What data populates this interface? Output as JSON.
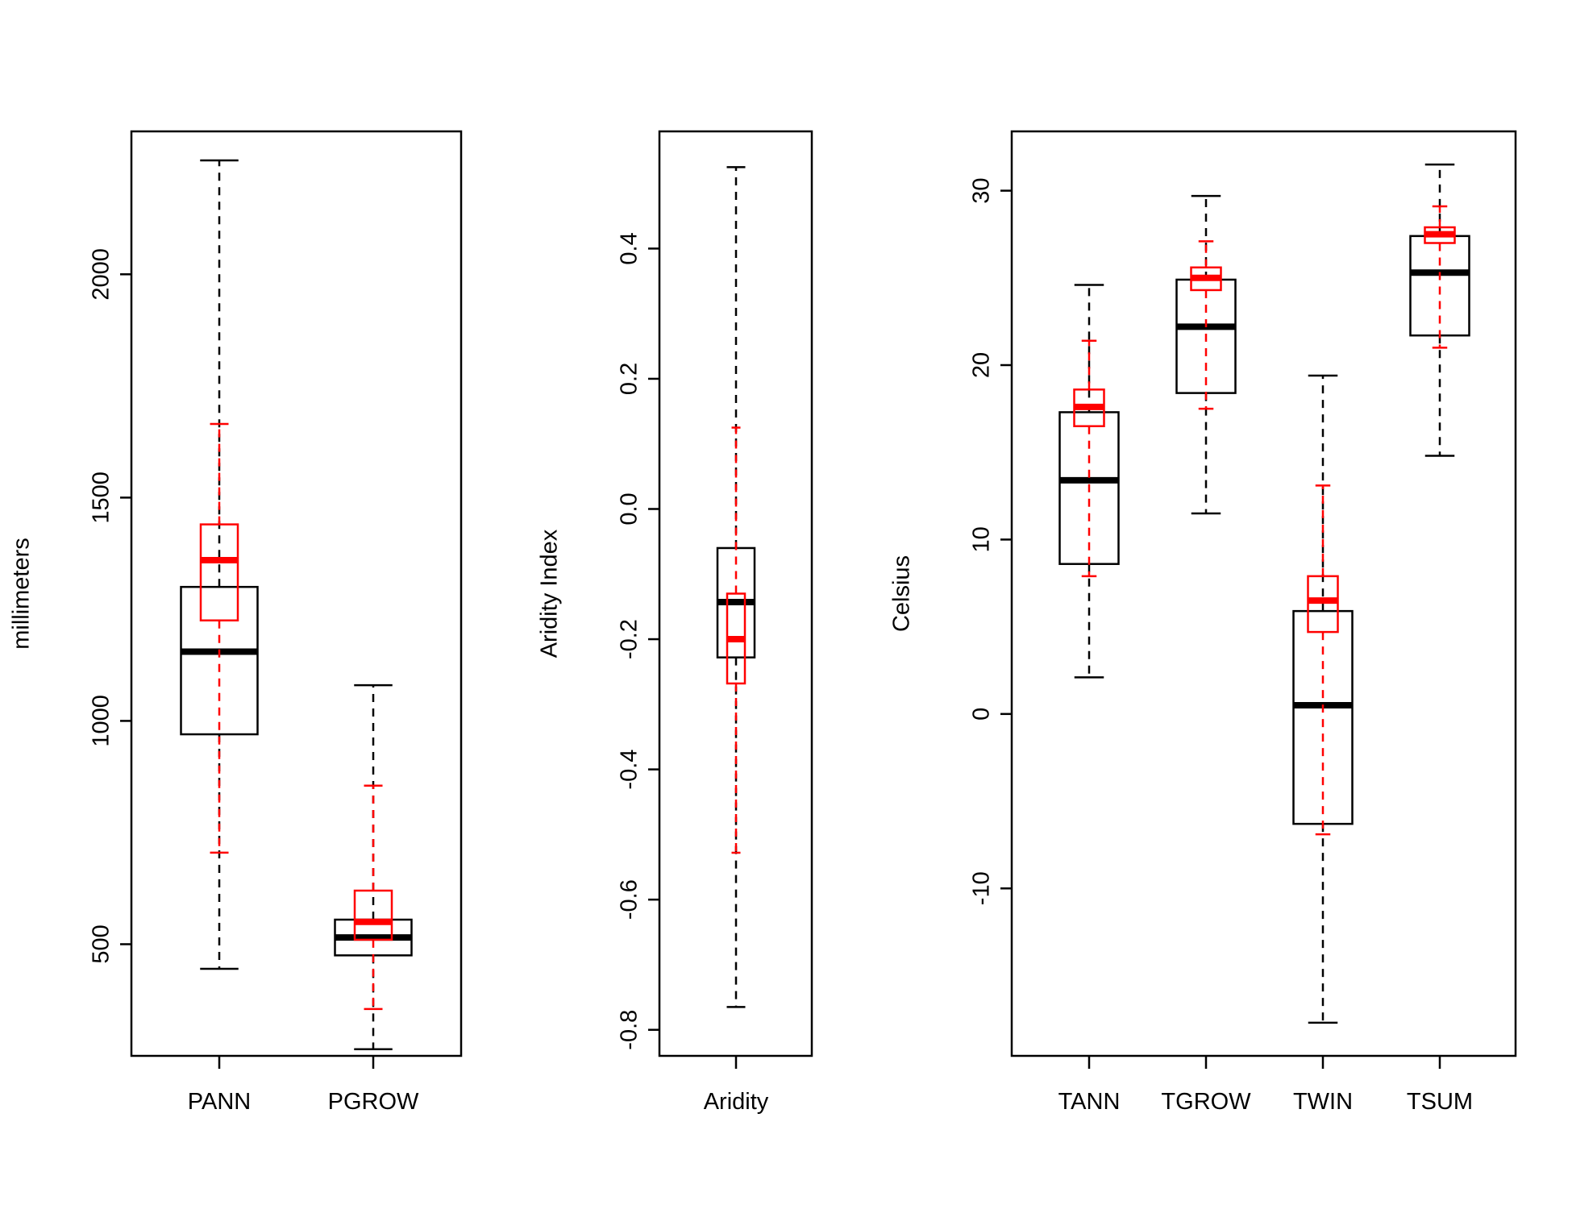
{
  "colors": {
    "overlay": "#ff0000",
    "primary": "#000000",
    "background": "#ffffff"
  },
  "chart_data": [
    {
      "type": "boxplot",
      "ylabel": "millimeters",
      "ylim": [
        250,
        2320
      ],
      "yticks": [
        500,
        1000,
        1500,
        2000
      ],
      "categories": [
        "PANN",
        "PGROW"
      ],
      "series": [
        {
          "name": "black",
          "color": "#000000",
          "boxes": [
            {
              "category": "PANN",
              "min": 445,
              "q1": 970,
              "median": 1155,
              "q3": 1300,
              "max": 2255
            },
            {
              "category": "PGROW",
              "min": 265,
              "q1": 475,
              "median": 515,
              "q3": 555,
              "max": 1080
            }
          ]
        },
        {
          "name": "red",
          "color": "#ff0000",
          "boxes": [
            {
              "category": "PANN",
              "min": 705,
              "q1": 1225,
              "median": 1360,
              "q3": 1440,
              "max": 1665
            },
            {
              "category": "PGROW",
              "min": 355,
              "q1": 510,
              "median": 550,
              "q3": 620,
              "max": 855
            }
          ]
        }
      ]
    },
    {
      "type": "boxplot",
      "ylabel": "Aridity Index",
      "ylim": [
        -0.84,
        0.58
      ],
      "yticks": [
        "-0.8",
        "-0.6",
        "-0.4",
        "-0.2",
        "0.0",
        "0.2",
        "0.4"
      ],
      "categories": [
        "Aridity"
      ],
      "series": [
        {
          "name": "black",
          "color": "#000000",
          "boxes": [
            {
              "category": "Aridity",
              "min": -0.765,
              "q1": -0.228,
              "median": -0.143,
              "q3": -0.06,
              "max": 0.525
            }
          ]
        },
        {
          "name": "red",
          "color": "#ff0000",
          "boxes": [
            {
              "category": "Aridity",
              "min": -0.528,
              "q1": -0.268,
              "median": -0.2,
              "q3": -0.13,
              "max": 0.125
            }
          ]
        }
      ]
    },
    {
      "type": "boxplot",
      "ylabel": "Celsius",
      "ylim": [
        -19.6,
        33.4
      ],
      "yticks": [
        -10,
        0,
        10,
        20,
        30
      ],
      "categories": [
        "TANN",
        "TGROW",
        "TWIN",
        "TSUM"
      ],
      "series": [
        {
          "name": "black",
          "color": "#000000",
          "boxes": [
            {
              "category": "TANN",
              "min": 2.1,
              "q1": 8.6,
              "median": 13.4,
              "q3": 17.3,
              "max": 24.6
            },
            {
              "category": "TGROW",
              "min": 11.5,
              "q1": 18.4,
              "median": 22.2,
              "q3": 24.9,
              "max": 29.7
            },
            {
              "category": "TWIN",
              "min": -17.7,
              "q1": -6.3,
              "median": 0.5,
              "q3": 5.9,
              "max": 19.4
            },
            {
              "category": "TSUM",
              "min": 14.8,
              "q1": 21.7,
              "median": 25.3,
              "q3": 27.4,
              "max": 31.5
            }
          ]
        },
        {
          "name": "red",
          "color": "#ff0000",
          "boxes": [
            {
              "category": "TANN",
              "min": 7.9,
              "q1": 16.5,
              "median": 17.6,
              "q3": 18.6,
              "max": 21.4
            },
            {
              "category": "TGROW",
              "min": 17.5,
              "q1": 24.3,
              "median": 25.0,
              "q3": 25.6,
              "max": 27.1
            },
            {
              "category": "TWIN",
              "min": -6.9,
              "q1": 4.7,
              "median": 6.5,
              "q3": 7.9,
              "max": 13.1
            },
            {
              "category": "TSUM",
              "min": 21.0,
              "q1": 27.0,
              "median": 27.5,
              "q3": 27.9,
              "max": 29.1
            }
          ]
        }
      ]
    }
  ]
}
